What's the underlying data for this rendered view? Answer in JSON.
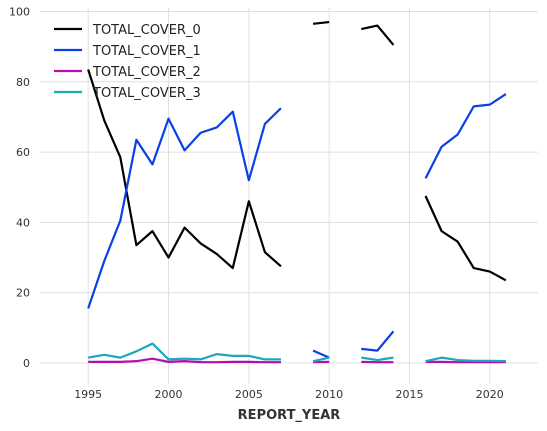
{
  "chart_data": {
    "type": "line",
    "xlabel": "REPORT_YEAR",
    "ylabel": "",
    "title": "",
    "xlim": [
      1992,
      2023
    ],
    "ylim": [
      -6,
      101
    ],
    "xticks": [
      1995,
      2000,
      2005,
      2010,
      2015,
      2020
    ],
    "yticks": [
      0,
      20,
      40,
      60,
      80,
      100
    ],
    "grid": true,
    "legend_position": "top-left",
    "series": [
      {
        "name": "TOTAL_COVER_0",
        "color": "#000000",
        "points": [
          [
            1995,
            83.5
          ],
          [
            1996,
            69
          ],
          [
            1997,
            58.5
          ],
          [
            1998,
            33.5
          ],
          [
            1999,
            37.5
          ],
          [
            2000,
            30
          ],
          [
            2001,
            38.5
          ],
          [
            2002,
            34
          ],
          [
            2003,
            31
          ],
          [
            2004,
            27
          ],
          [
            2005,
            46
          ],
          [
            2006,
            31.5
          ],
          [
            2007,
            27.5
          ],
          null,
          [
            2009,
            96.5
          ],
          [
            2010,
            97
          ],
          null,
          [
            2012,
            95
          ],
          [
            2013,
            96
          ],
          [
            2014,
            90.5
          ],
          null,
          [
            2016,
            47.5
          ],
          [
            2017,
            37.5
          ],
          [
            2018,
            34.5
          ],
          [
            2019,
            27
          ],
          [
            2020,
            26
          ],
          [
            2021,
            23.5
          ]
        ]
      },
      {
        "name": "TOTAL_COVER_1",
        "color": "#0a40e6",
        "points": [
          [
            1995,
            15.5
          ],
          [
            1996,
            29
          ],
          [
            1997,
            40.5
          ],
          [
            1998,
            63.5
          ],
          [
            1999,
            56.5
          ],
          [
            2000,
            69.5
          ],
          [
            2001,
            60.5
          ],
          [
            2002,
            65.5
          ],
          [
            2003,
            67
          ],
          [
            2004,
            71.5
          ],
          [
            2005,
            52
          ],
          [
            2006,
            68
          ],
          [
            2007,
            72.5
          ],
          null,
          [
            2009,
            3.5
          ],
          [
            2010,
            1.5
          ],
          null,
          [
            2012,
            4
          ],
          [
            2013,
            3.5
          ],
          [
            2014,
            9
          ],
          null,
          [
            2016,
            52.5
          ],
          [
            2017,
            61.5
          ],
          [
            2018,
            65
          ],
          [
            2019,
            73
          ],
          [
            2020,
            73.5
          ],
          [
            2021,
            76.5
          ]
        ]
      },
      {
        "name": "TOTAL_COVER_2",
        "color": "#b30fb0",
        "points": [
          [
            1995,
            0.3
          ],
          [
            1996,
            0.3
          ],
          [
            1997,
            0.3
          ],
          [
            1998,
            0.5
          ],
          [
            1999,
            1.2
          ],
          [
            2000,
            0.3
          ],
          [
            2001,
            0.5
          ],
          [
            2002,
            0.2
          ],
          [
            2003,
            0.2
          ],
          [
            2004,
            0.3
          ],
          [
            2005,
            0.3
          ],
          [
            2006,
            0.2
          ],
          [
            2007,
            0.2
          ],
          null,
          [
            2009,
            0.2
          ],
          [
            2010,
            0.3
          ],
          null,
          [
            2012,
            0.3
          ],
          [
            2013,
            0.2
          ],
          [
            2014,
            0.2
          ],
          null,
          [
            2016,
            0.3
          ],
          [
            2017,
            0.3
          ],
          [
            2018,
            0.2
          ],
          [
            2019,
            0.2
          ],
          [
            2020,
            0.2
          ],
          [
            2021,
            0.2
          ]
        ]
      },
      {
        "name": "TOTAL_COVER_3",
        "color": "#1ba8bb",
        "points": [
          [
            1995,
            1.5
          ],
          [
            1996,
            2.3
          ],
          [
            1997,
            1.5
          ],
          [
            1998,
            3.3
          ],
          [
            1999,
            5.5
          ],
          [
            2000,
            1
          ],
          [
            2001,
            1.2
          ],
          [
            2002,
            1
          ],
          [
            2003,
            2.5
          ],
          [
            2004,
            2
          ],
          [
            2005,
            2
          ],
          [
            2006,
            1
          ],
          [
            2007,
            1
          ],
          null,
          [
            2009,
            0.5
          ],
          [
            2010,
            1.5
          ],
          null,
          [
            2012,
            1.5
          ],
          [
            2013,
            0.8
          ],
          [
            2014,
            1.5
          ],
          null,
          [
            2016,
            0.5
          ],
          [
            2017,
            1.5
          ],
          [
            2018,
            0.8
          ],
          [
            2019,
            0.6
          ],
          [
            2020,
            0.6
          ],
          [
            2021,
            0.5
          ]
        ]
      }
    ]
  }
}
